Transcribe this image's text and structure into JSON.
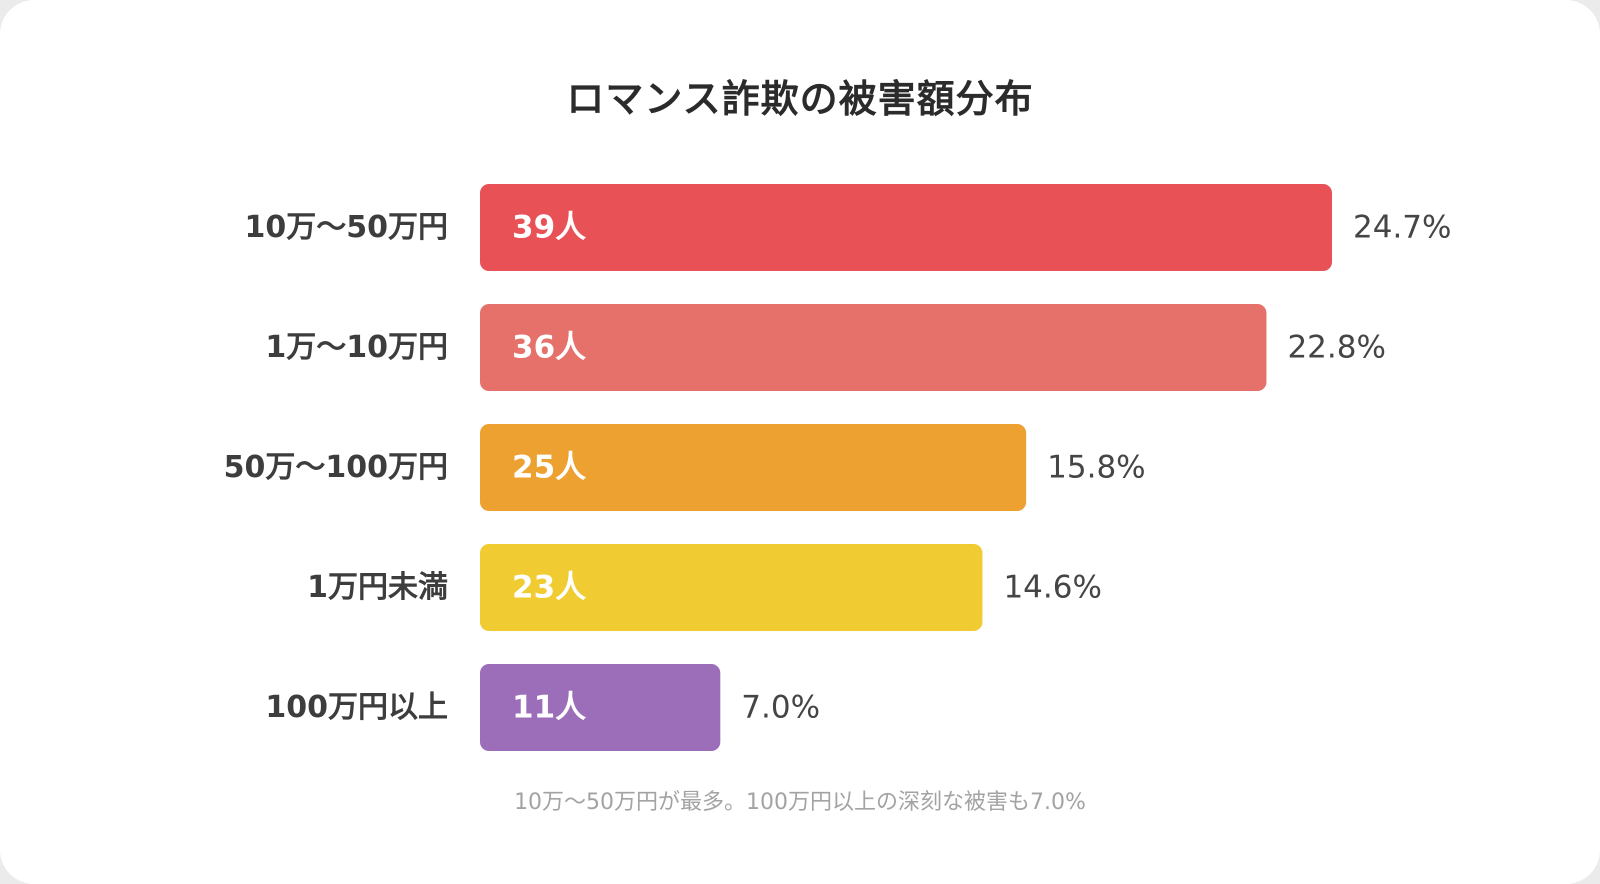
{
  "chart_data": {
    "type": "bar",
    "orientation": "horizontal",
    "title": "ロマンス詐欺の被害額分布",
    "categories": [
      "10万〜50万円",
      "1万〜10万円",
      "50万〜100万円",
      "1万円未満",
      "100万円以上"
    ],
    "values": [
      39,
      36,
      25,
      23,
      11
    ],
    "value_labels": [
      "39人",
      "36人",
      "25人",
      "23人",
      "11人"
    ],
    "percent_labels": [
      "24.7%",
      "22.8%",
      "15.8%",
      "14.6%",
      "7.0%"
    ],
    "colors": [
      "#e85155",
      "#e6716b",
      "#eda131",
      "#f0cb32",
      "#9c6db8"
    ],
    "xlim": [
      0,
      39
    ],
    "grid": false,
    "legend": "none"
  },
  "footnote": "10万〜50万円が最多。100万円以上の深刻な被害も7.0%"
}
